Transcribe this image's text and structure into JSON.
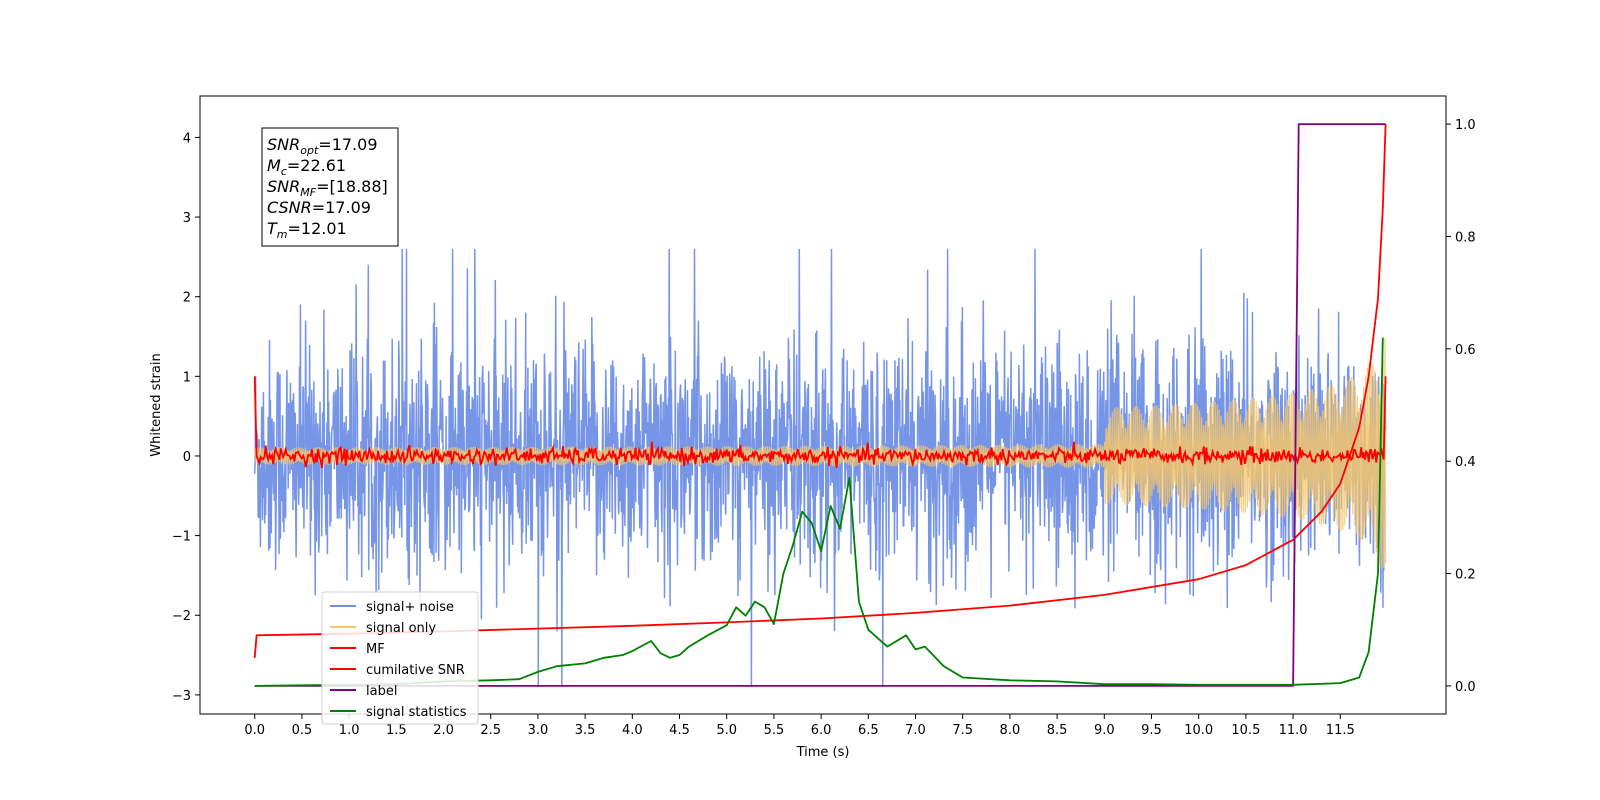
{
  "chart_data": {
    "type": "line",
    "xlabel": "Time (s)",
    "ylabel": "Whitened strain",
    "x_ticks": [
      0.0,
      0.5,
      1.0,
      1.5,
      2.0,
      2.5,
      3.0,
      3.5,
      4.0,
      4.5,
      5.0,
      5.5,
      6.0,
      6.5,
      7.0,
      7.5,
      8.0,
      8.5,
      9.0,
      9.5,
      10.0,
      10.5,
      11.0,
      11.5
    ],
    "x_tick_labels": [
      "0.0",
      "0.5",
      "1.0",
      "1.5",
      "2.0",
      "2.5",
      "3.0",
      "3.5",
      "4.0",
      "4.5",
      "5.0",
      "5.5",
      "6.0",
      "6.5",
      "7.0",
      "7.5",
      "8.0",
      "8.5",
      "9.0",
      "9.5",
      "10.0",
      "10.5",
      "11.0",
      "11.5"
    ],
    "xlim": [
      -0.58,
      12.62
    ],
    "ylim_left": [
      -3.24,
      4.52
    ],
    "y_left_ticks": [
      -3,
      -2,
      -1,
      0,
      1,
      2,
      3,
      4
    ],
    "y_left_tick_labels": [
      "−3",
      "−2",
      "−1",
      "0",
      "1",
      "2",
      "3",
      "4"
    ],
    "ylim_right": [
      -0.05,
      1.05
    ],
    "y_right_ticks": [
      0.0,
      0.2,
      0.4,
      0.6,
      0.8,
      1.0
    ],
    "y_right_tick_labels": [
      "0.0",
      "0.2",
      "0.4",
      "0.6",
      "0.8",
      "1.0"
    ],
    "grid": false,
    "legend_position": "lower-left",
    "legend": [
      {
        "name": "signal+ noise",
        "color": "#6f8fe6"
      },
      {
        "name": "signal only",
        "color": "#f5c56b"
      },
      {
        "name": "MF",
        "color": "#ff0000"
      },
      {
        "name": "cumilative SNR",
        "color": "#ff0000"
      },
      {
        "name": "label",
        "color": "#800080"
      },
      {
        "name": "signal statistics",
        "color": "#008000"
      }
    ],
    "annotations": [
      {
        "label": "SNR",
        "sub": "opt",
        "value": "=17.09"
      },
      {
        "label": "M",
        "sub": "c",
        "value": "=22.61"
      },
      {
        "label": "SNR",
        "sub": "MF",
        "value": "=[18.88]"
      },
      {
        "label": "CSNR",
        "sub": "",
        "value": "=17.09"
      },
      {
        "label": "T",
        "sub": "m",
        "value": "=12.01"
      }
    ],
    "series": [
      {
        "name": "signal+ noise",
        "axis": "left",
        "color": "#6f8fe6",
        "x_range": [
          0.0,
          11.98
        ],
        "mean": 0.0,
        "envelope": [
          -2.2,
          2.4
        ]
      },
      {
        "name": "signal only",
        "axis": "left",
        "color": "#f5c56b",
        "x_range": [
          0.0,
          11.98
        ],
        "envelope_end": 1.7
      },
      {
        "name": "MF",
        "axis": "left",
        "color": "#ff0000",
        "x": [
          0.0,
          0.02,
          0.05,
          0.1,
          11.96,
          11.98
        ],
        "y": [
          1.0,
          0.0,
          0.15,
          0.05,
          0.0,
          1.0
        ]
      },
      {
        "name": "cumilative SNR",
        "axis": "right",
        "color": "#ff0000",
        "x": [
          0.0,
          0.02,
          1.0,
          2.0,
          3.0,
          4.0,
          5.0,
          6.0,
          7.0,
          8.0,
          9.0,
          10.0,
          10.5,
          11.0,
          11.3,
          11.5,
          11.7,
          11.8,
          11.9,
          11.95,
          11.98
        ],
        "y": [
          0.05,
          0.09,
          0.093,
          0.097,
          0.102,
          0.107,
          0.113,
          0.12,
          0.13,
          0.143,
          0.162,
          0.19,
          0.215,
          0.26,
          0.31,
          0.36,
          0.46,
          0.55,
          0.69,
          0.85,
          1.0
        ]
      },
      {
        "name": "label",
        "axis": "right",
        "color": "#800080",
        "x": [
          0.0,
          11.0,
          11.06,
          11.98
        ],
        "y": [
          0.0,
          0.0,
          1.0,
          1.0
        ]
      },
      {
        "name": "signal statistics",
        "axis": "right",
        "color": "#008000",
        "x": [
          0.0,
          0.5,
          1.0,
          1.5,
          2.0,
          2.5,
          2.8,
          3.0,
          3.2,
          3.5,
          3.7,
          3.9,
          4.0,
          4.2,
          4.3,
          4.4,
          4.5,
          4.6,
          4.8,
          5.0,
          5.1,
          5.2,
          5.3,
          5.4,
          5.5,
          5.6,
          5.7,
          5.8,
          5.9,
          6.0,
          6.1,
          6.2,
          6.3,
          6.4,
          6.5,
          6.7,
          6.9,
          7.0,
          7.1,
          7.3,
          7.5,
          8.0,
          8.5,
          9.0,
          9.5,
          10.0,
          11.0,
          11.5,
          11.7,
          11.8,
          11.9,
          11.95
        ],
        "y": [
          0.0,
          0.001,
          0.002,
          0.003,
          0.008,
          0.01,
          0.012,
          0.025,
          0.035,
          0.04,
          0.05,
          0.055,
          0.062,
          0.08,
          0.058,
          0.05,
          0.055,
          0.07,
          0.09,
          0.108,
          0.14,
          0.125,
          0.15,
          0.14,
          0.11,
          0.2,
          0.25,
          0.31,
          0.29,
          0.24,
          0.32,
          0.28,
          0.37,
          0.15,
          0.1,
          0.07,
          0.09,
          0.065,
          0.07,
          0.035,
          0.015,
          0.01,
          0.008,
          0.003,
          0.003,
          0.002,
          0.002,
          0.005,
          0.015,
          0.06,
          0.2,
          0.62
        ]
      }
    ]
  }
}
